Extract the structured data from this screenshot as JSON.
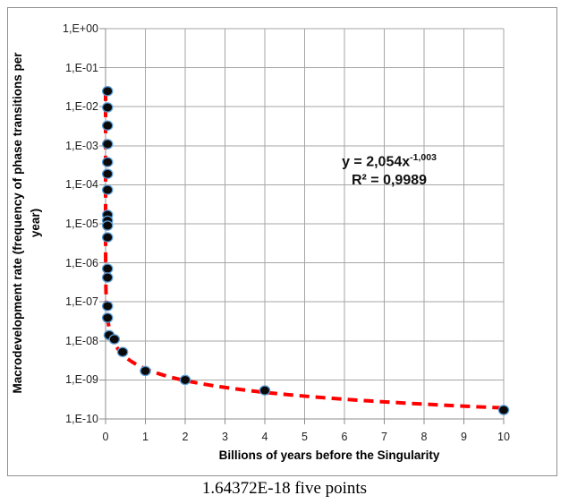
{
  "figure": {
    "caption": "1.64372E-18 five points"
  },
  "chart_data": {
    "type": "scatter",
    "title": "",
    "xlabel": "Billions of years before the Singularity",
    "ylabel_line1": "Macrodevelopment rate (frequency of phase transitions per",
    "ylabel_line2": "year)",
    "x_ticks": [
      "0",
      "1",
      "2",
      "3",
      "4",
      "5",
      "6",
      "7",
      "8",
      "9",
      "10"
    ],
    "y_ticks": [
      "1,E+00",
      "1,E-01",
      "1,E-02",
      "1,E-03",
      "1,E-04",
      "1,E-05",
      "1,E-06",
      "1,E-07",
      "1,E-08",
      "1,E-09",
      "1,E-10"
    ],
    "xlim": [
      0,
      10
    ],
    "ylim_log": [
      1e-10,
      1
    ],
    "grid": true,
    "legend": "none",
    "points": [
      {
        "x": 0.05,
        "y": 0.025
      },
      {
        "x": 0.05,
        "y": 0.0096
      },
      {
        "x": 0.05,
        "y": 0.0033
      },
      {
        "x": 0.05,
        "y": 0.0011
      },
      {
        "x": 0.05,
        "y": 0.00038
      },
      {
        "x": 0.05,
        "y": 0.00019
      },
      {
        "x": 0.05,
        "y": 7.4e-05
      },
      {
        "x": 0.05,
        "y": 1.7e-05
      },
      {
        "x": 0.05,
        "y": 1.2e-05
      },
      {
        "x": 0.05,
        "y": 9e-06
      },
      {
        "x": 0.05,
        "y": 4.5e-06
      },
      {
        "x": 0.05,
        "y": 7.1e-07
      },
      {
        "x": 0.05,
        "y": 4.2e-07
      },
      {
        "x": 0.05,
        "y": 7.8e-08
      },
      {
        "x": 0.05,
        "y": 3.9e-08
      },
      {
        "x": 0.09,
        "y": 1.4e-08
      },
      {
        "x": 0.22,
        "y": 1.1e-08
      },
      {
        "x": 0.43,
        "y": 5.2e-09
      },
      {
        "x": 1.0,
        "y": 1.7e-09
      },
      {
        "x": 2.0,
        "y": 1e-09
      },
      {
        "x": 4.0,
        "y": 5.4e-10
      },
      {
        "x": 10.0,
        "y": 1.7e-10
      }
    ],
    "trendline": {
      "type": "power",
      "a": 2.054,
      "b": -1.003,
      "x_unit_scale_years": 1000000000.0,
      "equation_base": "y = 2,054x",
      "equation_exponent": "-1,003",
      "r_squared": "R² = 0,9989",
      "color": "#FF0000",
      "style": "dashed"
    },
    "marker": {
      "fill": "#0a0a0a",
      "stroke": "#5b9bd5"
    },
    "colors": {
      "gridline": "#a6a6a6",
      "axis": "#8c8c8c",
      "tick_text": "#1f1f1f",
      "title_text": "#000000",
      "background": "#ffffff"
    }
  }
}
